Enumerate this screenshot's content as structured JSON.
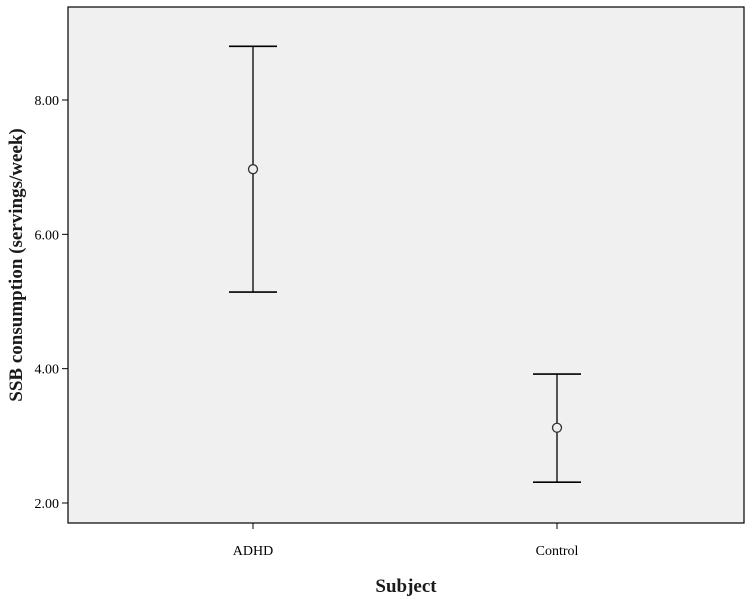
{
  "chart_data": {
    "type": "errorbar",
    "title": "",
    "xlabel": "Subject",
    "ylabel": "SSB consumption (servings/week)",
    "categories": [
      "ADHD",
      "Control"
    ],
    "series": [
      {
        "means": [
          6.97,
          3.12
        ],
        "lower": [
          5.14,
          2.31
        ],
        "upper": [
          8.8,
          3.92
        ]
      }
    ],
    "yticks": [
      "2.00",
      "4.00",
      "6.00",
      "8.00"
    ],
    "ytick_values": [
      2,
      4,
      6,
      8
    ],
    "ylim": [
      1.0,
      9.5
    ],
    "grid": false,
    "legend": "none",
    "colors": {
      "plot_background": "#f0f0f0",
      "line": "#000000",
      "marker_stroke": "#333333"
    }
  }
}
